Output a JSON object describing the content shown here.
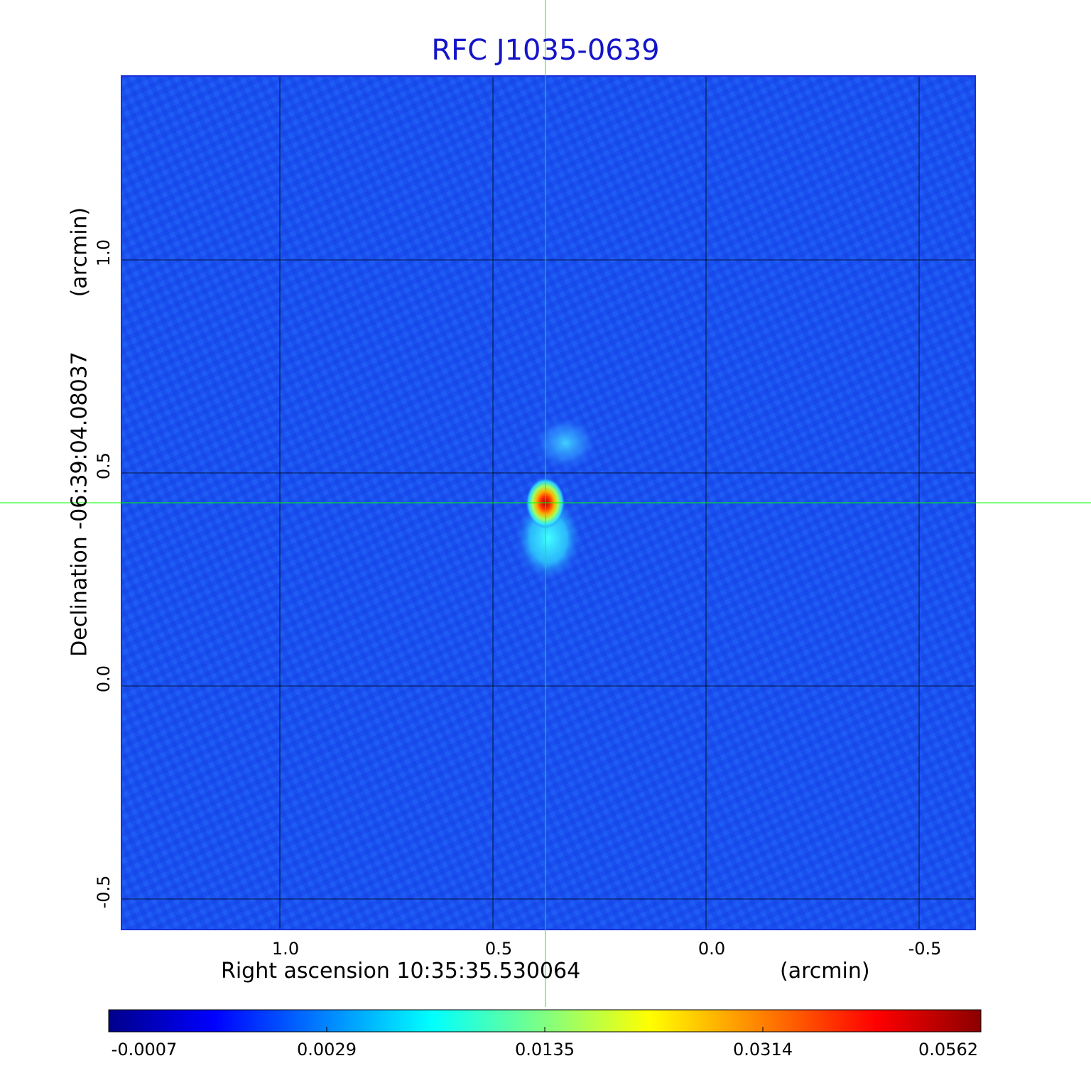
{
  "chart_data": {
    "type": "heatmap",
    "title": "RFC J1035-0639",
    "xlabel": "Right ascension  10:35:35.530064",
    "xunit": "(arcmin)",
    "ylabel": "Declination  -06:39:04.08037",
    "yunit": "(arcmin)",
    "x_ticks": [
      "1.0",
      "0.5",
      "0.0",
      "-0.5"
    ],
    "y_ticks": [
      "1.0",
      "0.5",
      "0.0",
      "-0.5"
    ],
    "xlim": [
      1.37,
      -0.63
    ],
    "ylim": [
      -0.57,
      1.43
    ],
    "grid": true,
    "crosshair": {
      "x": 0.377,
      "y": 0.43
    },
    "sources": [
      {
        "x": 0.377,
        "y": 0.43,
        "peak": 0.0562
      },
      {
        "x": 0.37,
        "y": 0.33,
        "peak": 0.006
      },
      {
        "x": 0.33,
        "y": 0.57,
        "peak": 0.004
      }
    ],
    "colorbar": {
      "ticks": [
        "-0.0007",
        "0.0029",
        "0.0135",
        "0.0314",
        "0.0562"
      ],
      "colormap": [
        "#00008b",
        "#0000ff",
        "#00ffff",
        "#ffff00",
        "#ff0000",
        "#8b0000"
      ]
    },
    "crosshair_color": "#00ff00",
    "title_color": "#1414c8",
    "background_color": "#1a50f0"
  }
}
